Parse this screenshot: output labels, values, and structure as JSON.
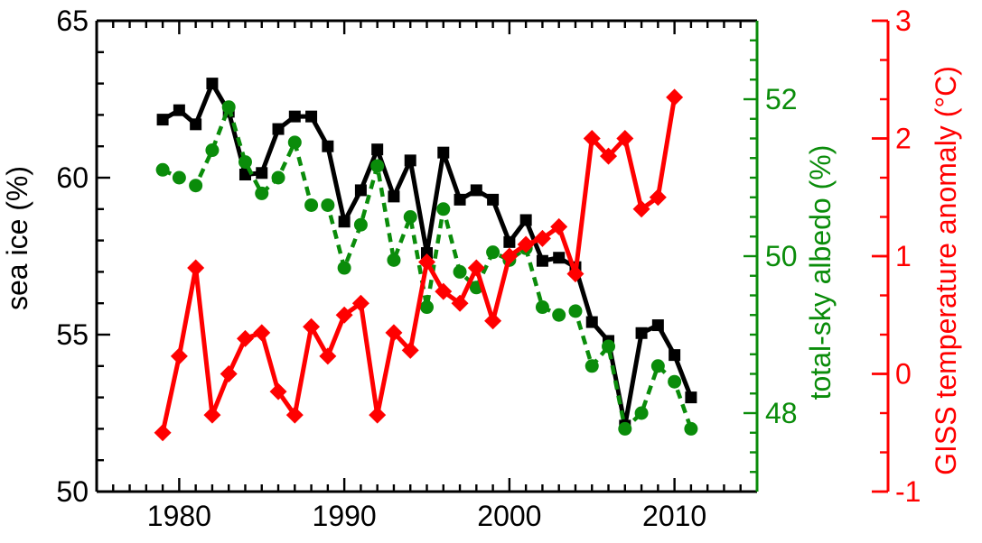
{
  "figure": {
    "background": "#ffffff",
    "kind": "three-axis time series plot"
  },
  "chart_data": {
    "type": "line",
    "title": "",
    "x": [
      1979,
      1980,
      1981,
      1982,
      1983,
      1984,
      1985,
      1986,
      1987,
      1988,
      1989,
      1990,
      1991,
      1992,
      1993,
      1994,
      1995,
      1996,
      1997,
      1998,
      1999,
      2000,
      2001,
      2002,
      2003,
      2004,
      2005,
      2006,
      2007,
      2008,
      2009,
      2010,
      2011
    ],
    "series": [
      {
        "name": "sea ice (%)",
        "axis": "y_left",
        "color": "#000000",
        "marker": "square",
        "linestyle": "solid",
        "values": [
          61.85,
          62.15,
          61.7,
          63.0,
          62.1,
          60.1,
          60.15,
          61.55,
          61.95,
          61.95,
          61.0,
          58.6,
          59.6,
          60.9,
          59.4,
          60.55,
          57.6,
          60.8,
          59.3,
          59.6,
          59.3,
          57.95,
          58.65,
          57.35,
          57.45,
          57.15,
          55.4,
          54.8,
          52.1,
          55.05,
          55.3,
          54.35,
          53.0
        ]
      },
      {
        "name": "total-sky albedo (%)",
        "axis": "y_right_inner",
        "color": "#0a8c0a",
        "marker": "circle",
        "linestyle": "dashed",
        "values": [
          51.1,
          51.0,
          50.9,
          51.35,
          51.9,
          51.2,
          50.8,
          51.0,
          51.45,
          50.65,
          50.65,
          49.85,
          50.4,
          51.15,
          49.95,
          50.5,
          49.35,
          50.6,
          49.8,
          49.6,
          50.05,
          49.95,
          50.1,
          49.35,
          49.25,
          49.3,
          48.6,
          48.85,
          47.8,
          48.0,
          48.6,
          48.4,
          47.8
        ]
      },
      {
        "name": "GISS temperature anomaly (°C)",
        "axis": "y_right_outer",
        "color": "#ff0000",
        "marker": "diamond",
        "linestyle": "solid",
        "values": [
          -0.5,
          0.15,
          0.9,
          -0.35,
          0.0,
          0.3,
          0.35,
          -0.15,
          -0.35,
          0.4,
          0.15,
          0.5,
          0.6,
          -0.35,
          0.35,
          0.2,
          0.95,
          0.7,
          0.6,
          0.9,
          0.45,
          1.0,
          1.1,
          1.15,
          1.25,
          0.85,
          2.0,
          1.85,
          2.0,
          1.4,
          1.5,
          2.35,
          null
        ]
      }
    ],
    "axes": {
      "x": {
        "label": "",
        "range": [
          1975,
          2015
        ],
        "major_ticks": [
          1980,
          1990,
          2000,
          2010
        ],
        "major_tick_labels": [
          "1980",
          "1990",
          "2000",
          "2010"
        ],
        "minor_step": 1
      },
      "y_left": {
        "label": "sea ice (%)",
        "color": "#000000",
        "range": [
          50,
          65
        ],
        "major_ticks": [
          50,
          55,
          60,
          65
        ],
        "major_tick_labels": [
          "50",
          "55",
          "60",
          "65"
        ],
        "minor_step": 1
      },
      "y_right_inner": {
        "label": "total-sky albedo (%)",
        "color": "#0a8c0a",
        "range": [
          47,
          53
        ],
        "major_ticks": [
          48,
          50,
          52
        ],
        "major_tick_labels": [
          "48",
          "50",
          "52"
        ],
        "minor_step": 0.25
      },
      "y_right_outer": {
        "label": "GISS temperature anomaly (°C)",
        "color": "#ff0000",
        "range": [
          -1,
          3
        ],
        "major_ticks": [
          -1,
          0,
          1,
          2,
          3
        ],
        "major_tick_labels": [
          "-1",
          "0",
          "1",
          "2",
          "3"
        ],
        "minor_step": 0.33333
      }
    },
    "legend": "none",
    "grid": false
  }
}
